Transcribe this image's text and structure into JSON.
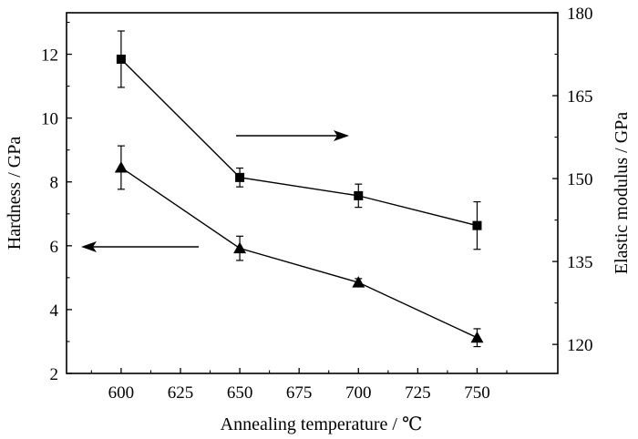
{
  "chart_data": {
    "type": "line",
    "title": "",
    "xlabel": "Annealing temperature / ℃",
    "ylabel_left": "Hardness / GPa",
    "ylabel_right": "Elastic modulus / GPa",
    "x_ticks": [
      600,
      625,
      650,
      675,
      700,
      725,
      750
    ],
    "xlim": [
      577,
      784
    ],
    "ylim_left": [
      2,
      13.3
    ],
    "y_ticks_left": [
      2,
      4,
      6,
      8,
      10,
      12
    ],
    "ylim_right": [
      114.75,
      180
    ],
    "y_ticks_right": [
      120,
      135,
      150,
      165,
      180
    ],
    "series": [
      {
        "name": "Hardness",
        "axis": "left",
        "marker": "triangle",
        "x": [
          600,
          650,
          700,
          750
        ],
        "values": [
          8.45,
          5.92,
          4.85,
          3.12
        ],
        "errors": [
          0.68,
          0.38,
          0.12,
          0.28
        ]
      },
      {
        "name": "Elastic modulus",
        "axis": "right",
        "marker": "square",
        "x": [
          600,
          650,
          700,
          750
        ],
        "values": [
          171.6,
          150.2,
          146.9,
          141.5
        ],
        "errors": [
          5.1,
          1.7,
          2.1,
          4.3
        ]
      }
    ],
    "annotations": [
      {
        "type": "arrow",
        "direction": "left",
        "points_to": "Hardness axis"
      },
      {
        "type": "arrow",
        "direction": "right",
        "points_to": "Elastic modulus axis"
      }
    ]
  }
}
